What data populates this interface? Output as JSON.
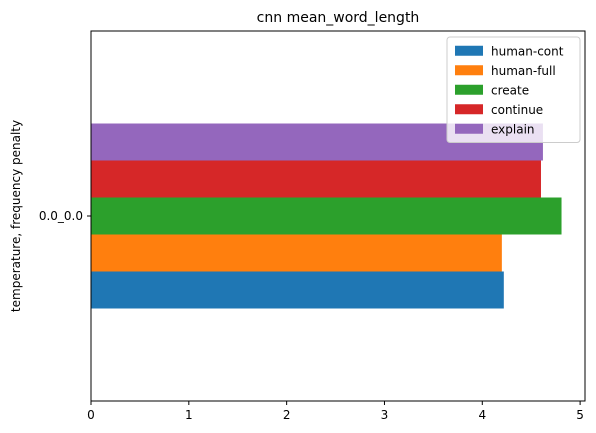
{
  "chart_data": {
    "type": "bar",
    "orientation": "horizontal",
    "title": "cnn mean_word_length",
    "xlabel": "",
    "ylabel": "temperature, frequency penalty",
    "categories": [
      "0.0_0.0"
    ],
    "xlim": [
      0,
      5.05
    ],
    "xticks": [
      0,
      1,
      2,
      3,
      4,
      5
    ],
    "grid": false,
    "legend_position": "top-right",
    "series": [
      {
        "name": "human-cont",
        "values": [
          4.22
        ],
        "color": "#1f77b4"
      },
      {
        "name": "human-full",
        "values": [
          4.2
        ],
        "color": "#ff7f0e"
      },
      {
        "name": "create",
        "values": [
          4.81
        ],
        "color": "#2ca02c"
      },
      {
        "name": "continue",
        "values": [
          4.6
        ],
        "color": "#d62728"
      },
      {
        "name": "explain",
        "values": [
          4.62
        ],
        "color": "#9467bd"
      }
    ]
  }
}
